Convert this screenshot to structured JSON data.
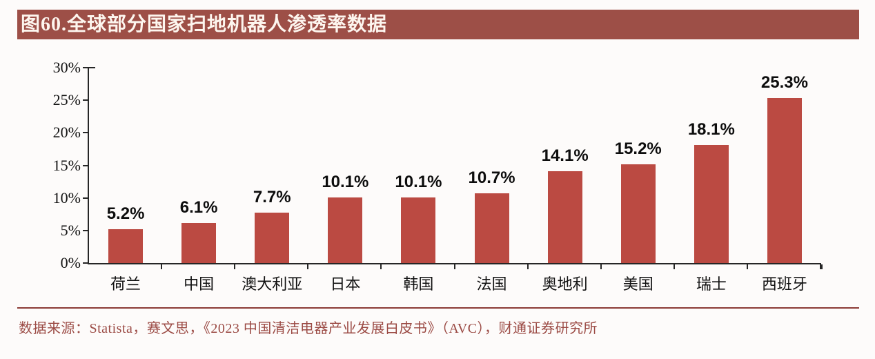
{
  "page": {
    "background": "#fdfbfa"
  },
  "header": {
    "title": "图60.全球部分国家扫地机器人渗透率数据",
    "bar_color": "#9d4f47",
    "text_color": "#fdf6ef"
  },
  "chart_data": {
    "type": "bar",
    "categories": [
      "荷兰",
      "中国",
      "澳大利亚",
      "日本",
      "韩国",
      "法国",
      "奥地利",
      "美国",
      "瑞士",
      "西班牙"
    ],
    "values": [
      5.2,
      6.1,
      7.7,
      10.1,
      10.1,
      10.7,
      14.1,
      15.2,
      18.1,
      25.3
    ],
    "data_labels": [
      "5.2%",
      "6.1%",
      "7.7%",
      "10.1%",
      "10.1%",
      "10.7%",
      "14.1%",
      "15.2%",
      "18.1%",
      "25.3%"
    ],
    "y_tick_labels": [
      "0%",
      "5%",
      "10%",
      "15%",
      "20%",
      "25%",
      "30%"
    ],
    "y_tick_values": [
      0,
      5,
      10,
      15,
      20,
      25,
      30
    ],
    "ylim": [
      0,
      30
    ],
    "title": "",
    "xlabel": "",
    "ylabel": "",
    "grid": false,
    "legend": false,
    "bar_color": "#bb4a42",
    "axis_color": "#262626",
    "label_color": "#0d0d0d"
  },
  "footer": {
    "divider_color": "#8b3a35",
    "source_text": "数据来源：Statista，赛文思，《2023 中国清洁电器产业发展白皮书》（AVC），财通证券研究所",
    "text_color": "#9b4a44"
  }
}
